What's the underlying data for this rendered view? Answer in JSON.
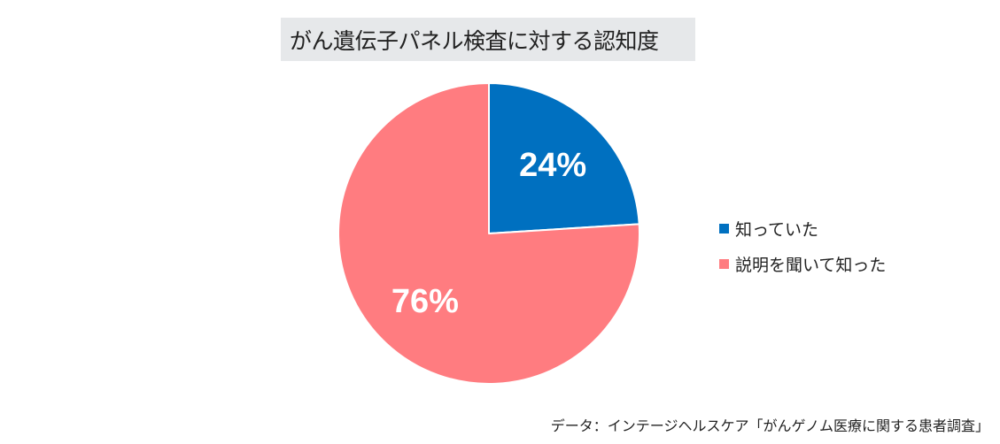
{
  "chart_data": {
    "type": "pie",
    "title": "がん遺伝子パネル検査に対する認知度",
    "categories": [
      "知っていた",
      "説明を聞いて知った"
    ],
    "values": [
      24,
      76
    ],
    "value_labels": [
      "24%",
      "76%"
    ],
    "colors": [
      "#0070c0",
      "#ff7c80"
    ],
    "legend_position": "right"
  },
  "source": "データ：インテージヘルスケア「がんゲノム医療に関する患者調査」"
}
